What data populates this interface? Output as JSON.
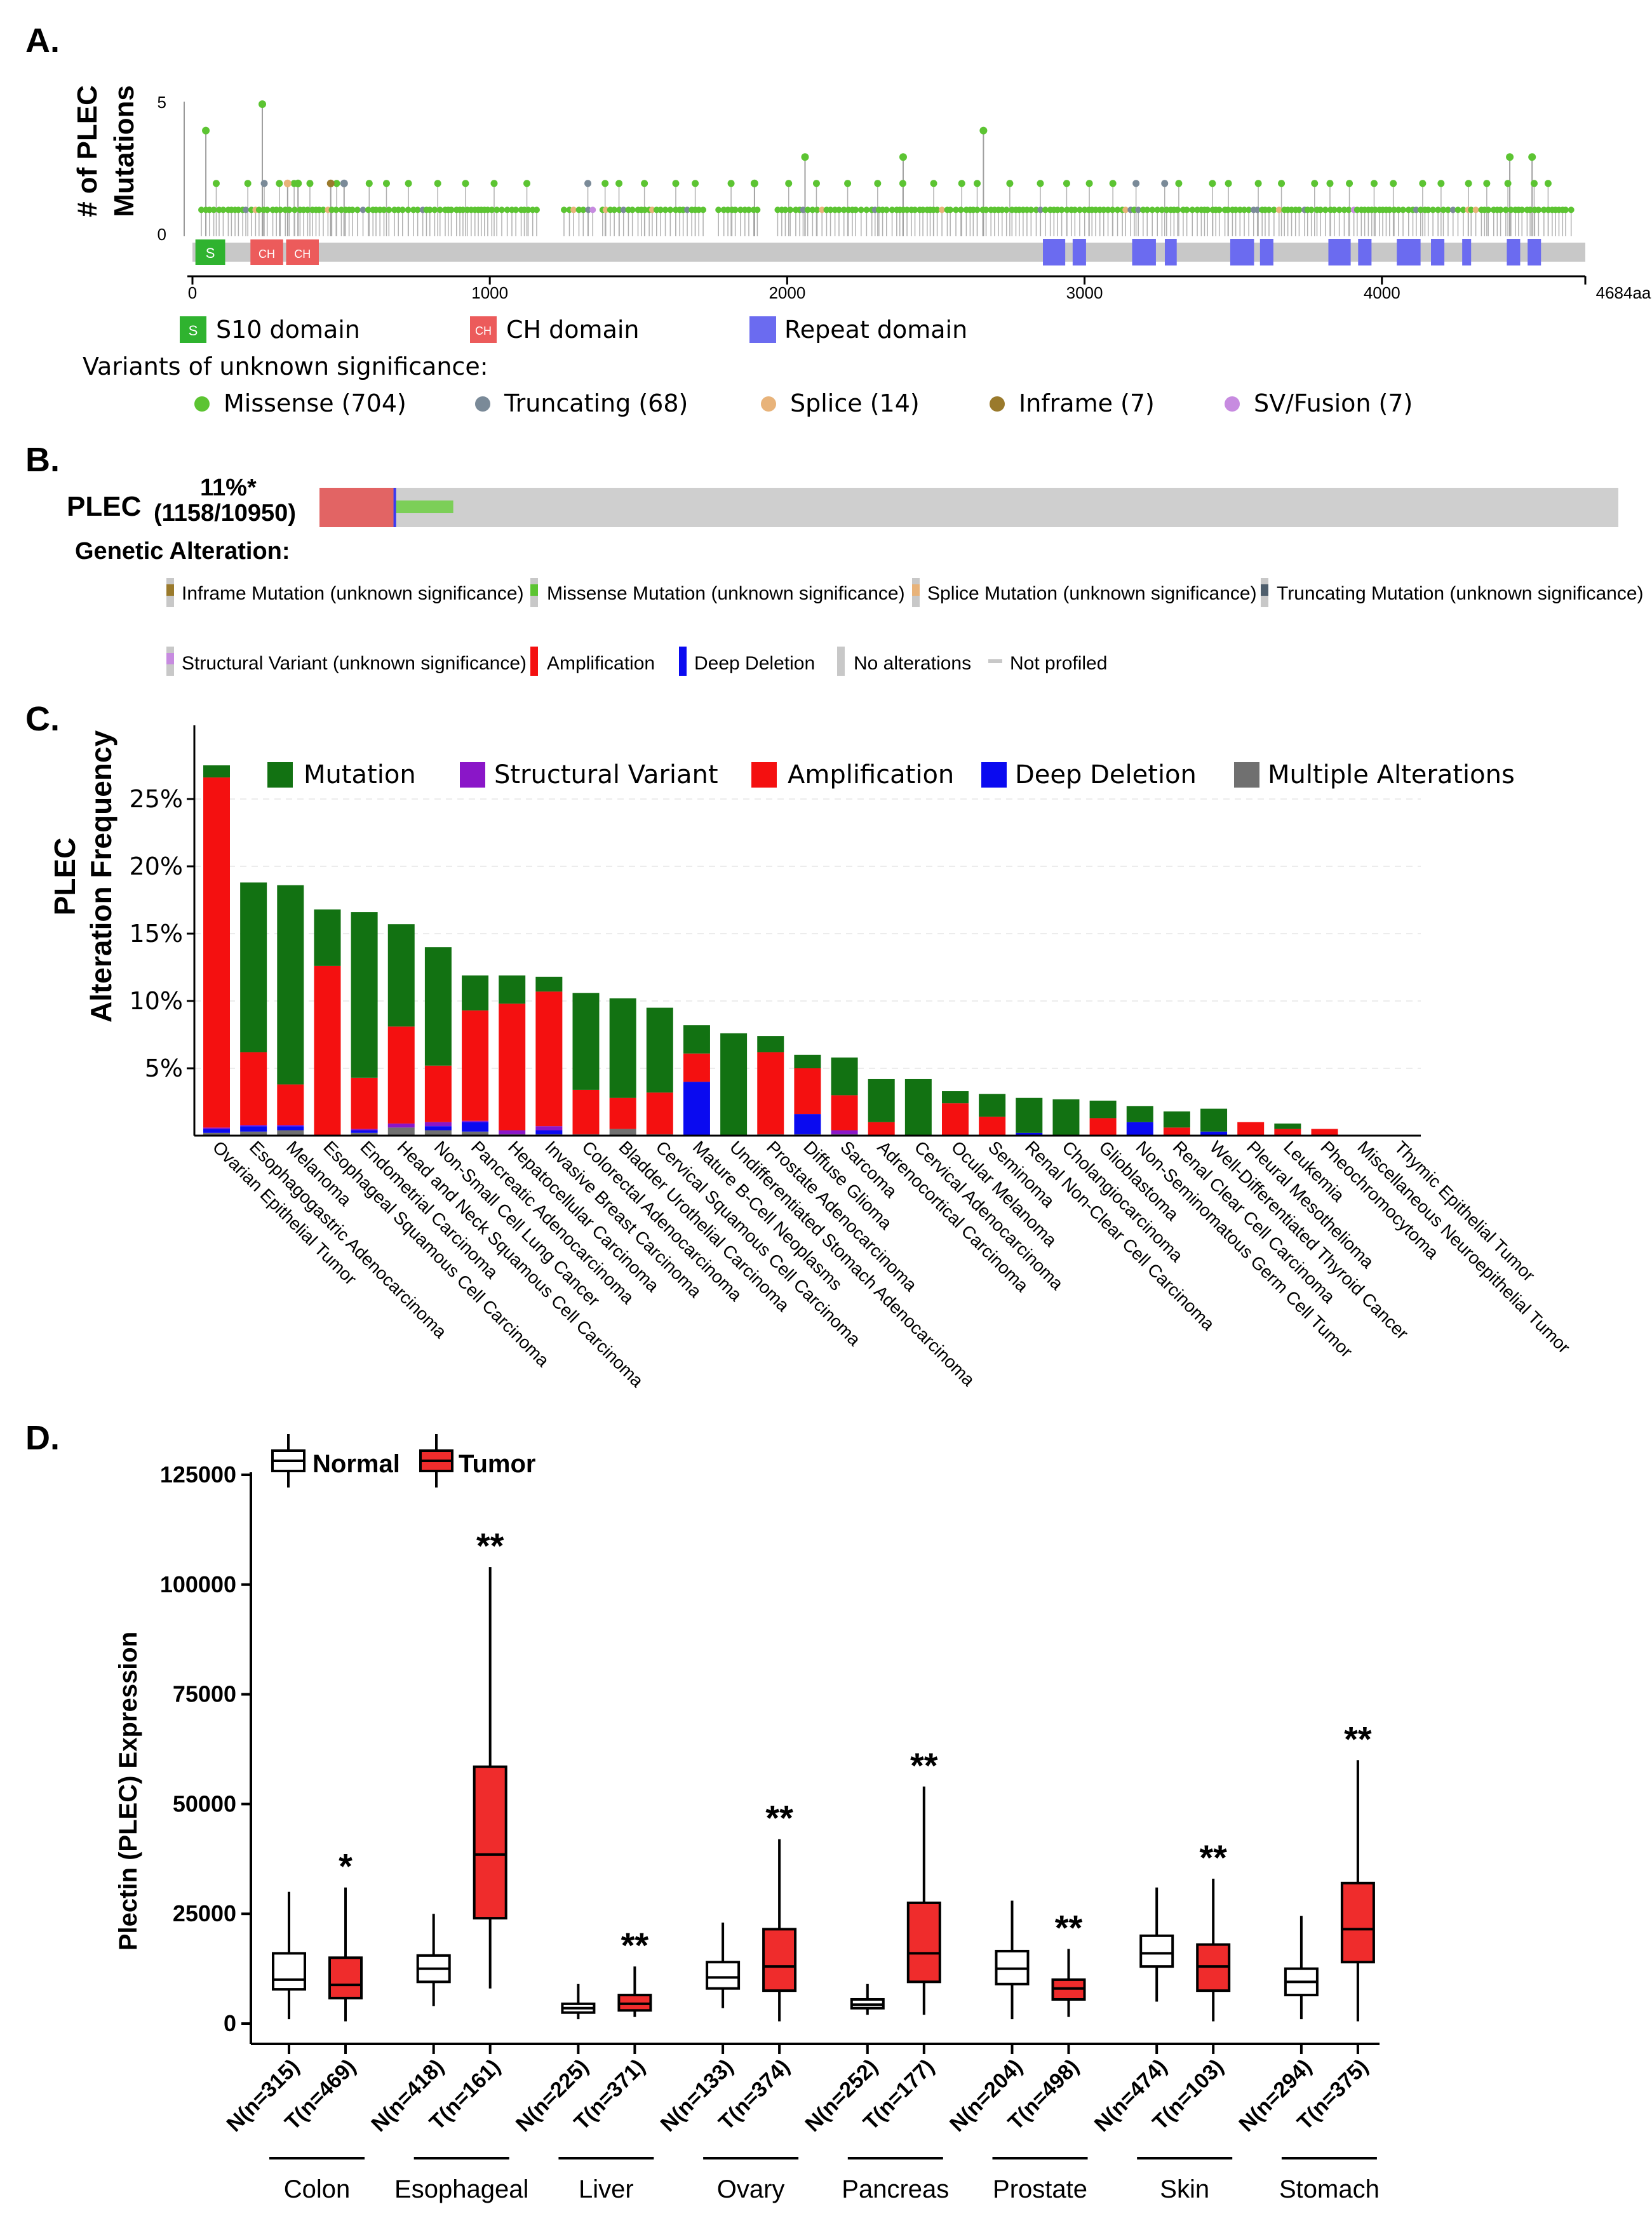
{
  "panels": {
    "a": "A.",
    "b": "B.",
    "c": "C.",
    "d": "D."
  },
  "colors": {
    "missense": "#5cc432",
    "truncating": "#7a8a98",
    "splice": "#e8b37a",
    "inframe": "#9a7a2c",
    "sv": "#c78be0",
    "s10": "#2fb32f",
    "ch": "#ec5b5b",
    "repeat": "#6b6bf0",
    "protein_bar": "#c8c8c8",
    "mutation": "#127212",
    "structural": "#8a16c8",
    "amplification": "#f41010",
    "deep_deletion": "#0a0af0",
    "multiple": "#707070",
    "tumor_box": "#ef2c2c",
    "normal_box": "#ffffff"
  },
  "panel_a": {
    "ylabel_line1": "# of PLEC",
    "ylabel_line2": "Mutations",
    "yticks": [
      "5",
      "0"
    ],
    "xticks": [
      "0",
      "1000",
      "2000",
      "3000",
      "4000",
      "4684aa"
    ],
    "domain_badges": {
      "s10": "S",
      "ch": "CH"
    },
    "domains": [
      {
        "badge": "S",
        "name": "S10 domain",
        "color": "#2fb32f"
      },
      {
        "badge": "CH",
        "name": "CH domain",
        "color": "#ec5b5b"
      },
      {
        "badge": "",
        "name": "Repeat domain",
        "color": "#6b6bf0"
      }
    ],
    "vus_title": "Variants of unknown significance:",
    "variants": [
      {
        "label": "Missense (704)",
        "color": "#5cc432"
      },
      {
        "label": "Truncating (68)",
        "color": "#7a8a98"
      },
      {
        "label": "Splice (14)",
        "color": "#e8b37a"
      },
      {
        "label": "Inframe (7)",
        "color": "#9a7a2c"
      },
      {
        "label": "SV/Fusion (7)",
        "color": "#c78be0"
      }
    ],
    "protein_length": 4684,
    "domain_ranges": [
      {
        "type": "S10",
        "start": 10,
        "end": 110
      },
      {
        "type": "CH",
        "start": 195,
        "end": 305
      },
      {
        "type": "CH",
        "start": 315,
        "end": 425
      },
      {
        "type": "Repeat",
        "start": 2860,
        "end": 2935
      },
      {
        "type": "Repeat",
        "start": 2960,
        "end": 3005
      },
      {
        "type": "Repeat",
        "start": 3160,
        "end": 3240
      },
      {
        "type": "Repeat",
        "start": 3270,
        "end": 3310
      },
      {
        "type": "Repeat",
        "start": 3490,
        "end": 3570
      },
      {
        "type": "Repeat",
        "start": 3590,
        "end": 3635
      },
      {
        "type": "Repeat",
        "start": 3820,
        "end": 3895
      },
      {
        "type": "Repeat",
        "start": 3920,
        "end": 3965
      },
      {
        "type": "Repeat",
        "start": 4050,
        "end": 4130
      },
      {
        "type": "Repeat",
        "start": 4165,
        "end": 4210
      },
      {
        "type": "Repeat",
        "start": 4270,
        "end": 4300
      },
      {
        "type": "Repeat",
        "start": 4420,
        "end": 4465
      },
      {
        "type": "Repeat",
        "start": 4490,
        "end": 4535
      }
    ],
    "featured_mutations": [
      {
        "pos": 45,
        "count": 4,
        "type": "Missense"
      },
      {
        "pos": 235,
        "count": 5,
        "type": "Missense"
      },
      {
        "pos": 320,
        "count": 2,
        "type": "Splice"
      },
      {
        "pos": 355,
        "count": 2,
        "type": "Missense"
      },
      {
        "pos": 465,
        "count": 2,
        "type": "Inframe"
      },
      {
        "pos": 510,
        "count": 2,
        "type": "Truncating"
      },
      {
        "pos": 1890,
        "count": 2,
        "type": "Missense"
      },
      {
        "pos": 2060,
        "count": 3,
        "type": "Missense"
      },
      {
        "pos": 2390,
        "count": 3,
        "type": "Missense"
      },
      {
        "pos": 2660,
        "count": 4,
        "type": "Missense"
      },
      {
        "pos": 4430,
        "count": 3,
        "type": "Missense"
      },
      {
        "pos": 4505,
        "count": 3,
        "type": "Missense"
      }
    ]
  },
  "panel_b": {
    "gene": "PLEC",
    "percent": "11%*",
    "counts": "(1158/10950)",
    "genetic_alteration_title": "Genetic Alteration:",
    "oncoprint_fractions": {
      "amplification": 0.057,
      "deep_deletion": 0.002,
      "mutation": 0.044
    },
    "legend": [
      {
        "label": "Inframe Mutation (unknown significance)",
        "color": "#9a7a2c"
      },
      {
        "label": "Missense Mutation (unknown significance)",
        "color": "#5cc432"
      },
      {
        "label": "Splice Mutation (unknown significance)",
        "color": "#e8b37a"
      },
      {
        "label": "Truncating Mutation (unknown significance)",
        "color": "#4e5e6c"
      },
      {
        "label": "Structural Variant (unknown significance)",
        "color": "#c78be0"
      },
      {
        "label": "Amplification",
        "color": "#f41010"
      },
      {
        "label": "Deep Deletion",
        "color": "#0a0af0"
      },
      {
        "label": "No alterations",
        "color": "#c8c8c8"
      },
      {
        "label": "Not profiled",
        "color": "#c8c8c8"
      }
    ]
  },
  "chart_data": [
    {
      "type": "bar",
      "stacked": true,
      "ylabel_line1": "PLEC",
      "ylabel_line2": "Alteration Frequency",
      "ylim": [
        0,
        27.5
      ],
      "yticks": [
        "5%",
        "10%",
        "15%",
        "20%",
        "25%"
      ],
      "grid": true,
      "legend_position": "top",
      "categories": [
        "Ovarian Epithelial Tumor",
        "Esophagogastric Adenocarcinoma",
        "Melanoma",
        "Esophageal Squamous Cell Carcinoma",
        "Endometrial Carcinoma",
        "Head and Neck Squamous Cell Carcinoma",
        "Non-Small Cell Lung Cancer",
        "Pancreatic Adenocarcinoma",
        "Hepatocellular Carcinoma",
        "Invasive Breast Carcinoma",
        "Colorectal Adenocarcinoma",
        "Bladder Urothelial Carcinoma",
        "Cervical Squamous Cell Carcinoma",
        "Mature B-Cell Neoplasms",
        "Undifferentiated Stomach Adenocarcinoma",
        "Prostate Adenocarcinoma",
        "Diffuse Glioma",
        "Sarcoma",
        "Adrenocortical Carcinoma",
        "Cervical Adenocarcinoma",
        "Ocular Melanoma",
        "Seminoma",
        "Renal Non-Clear Cell Carcinoma",
        "Cholangiocarcinoma",
        "Glioblastoma",
        "Non-Seminomatous Germ Cell Tumor",
        "Renal Clear Cell Carcinoma",
        "Well-Differentiated Thyroid Cancer",
        "Pleural Mesothelioma",
        "Leukemia",
        "Pheochromocytoma",
        "Miscellaneous Neuroepithelial Tumor",
        "Thymic Epithelial Tumor"
      ],
      "series": [
        {
          "name": "Mutation",
          "color": "#127212",
          "values": [
            0.9,
            12.6,
            14.8,
            4.2,
            12.3,
            7.6,
            8.8,
            2.6,
            2.1,
            1.1,
            7.2,
            7.4,
            6.3,
            2.1,
            7.6,
            1.2,
            1.0,
            2.8,
            3.2,
            4.2,
            0.9,
            1.7,
            2.6,
            2.7,
            1.3,
            1.2,
            1.2,
            1.7,
            0.0,
            0.4,
            0.0,
            0.0,
            0.0
          ]
        },
        {
          "name": "Structural Variant",
          "color": "#8a16c8",
          "values": [
            0.1,
            0.1,
            0.1,
            0.0,
            0.1,
            0.3,
            0.3,
            0.1,
            0.3,
            0.3,
            0.0,
            0.0,
            0.0,
            0.0,
            0.0,
            0.0,
            0.0,
            0.3,
            0.0,
            0.0,
            0.0,
            0.0,
            0.0,
            0.0,
            0.0,
            0.0,
            0.0,
            0.0,
            0.0,
            0.0,
            0.0,
            0.0,
            0.0
          ]
        },
        {
          "name": "Amplification",
          "color": "#f41010",
          "values": [
            26.0,
            5.4,
            3.0,
            12.6,
            3.8,
            7.2,
            4.2,
            8.2,
            9.4,
            10.0,
            3.3,
            2.3,
            3.1,
            2.1,
            0.0,
            6.1,
            3.4,
            2.6,
            1.0,
            0.0,
            2.4,
            1.4,
            0.0,
            0.0,
            1.3,
            0.0,
            0.6,
            0.0,
            1.0,
            0.5,
            0.5,
            0.0,
            0.0
          ]
        },
        {
          "name": "Deep Deletion",
          "color": "#0a0af0",
          "values": [
            0.3,
            0.4,
            0.3,
            0.0,
            0.2,
            0.0,
            0.3,
            0.7,
            0.0,
            0.3,
            0.0,
            0.0,
            0.0,
            4.0,
            0.0,
            0.0,
            1.5,
            0.0,
            0.0,
            0.0,
            0.0,
            0.0,
            0.2,
            0.0,
            0.0,
            1.0,
            0.0,
            0.3,
            0.0,
            0.0,
            0.0,
            0.0,
            0.0
          ]
        },
        {
          "name": "Multiple Alterations",
          "color": "#707070",
          "values": [
            0.2,
            0.3,
            0.4,
            0.0,
            0.2,
            0.6,
            0.4,
            0.3,
            0.1,
            0.1,
            0.1,
            0.5,
            0.1,
            0.0,
            0.0,
            0.1,
            0.1,
            0.1,
            0.0,
            0.0,
            0.0,
            0.0,
            0.0,
            0.0,
            0.0,
            0.0,
            0.0,
            0.0,
            0.0,
            0.0,
            0.0,
            0.0,
            0.0
          ]
        }
      ]
    },
    {
      "type": "box",
      "ylabel": "Plectin (PLEC) Expression",
      "ylim": [
        0,
        125000
      ],
      "yticks": [
        "0",
        "25000",
        "50000",
        "75000",
        "100000",
        "125000"
      ],
      "legend": [
        {
          "label": "Normal",
          "color": "#ffffff"
        },
        {
          "label": "Tumor",
          "color": "#ef2c2c"
        }
      ],
      "groups": [
        {
          "tissue": "Colon",
          "normal": {
            "label": "N(n=315)",
            "min": 1000,
            "q1": 7800,
            "median": 10000,
            "q3": 16000,
            "max": 30000
          },
          "tumor": {
            "label": "T(n=469)",
            "min": 500,
            "q1": 5800,
            "median": 8800,
            "q3": 15000,
            "max": 31000
          },
          "sig": "*"
        },
        {
          "tissue": "Esophageal",
          "normal": {
            "label": "N(n=418)",
            "min": 4000,
            "q1": 9500,
            "median": 12500,
            "q3": 15500,
            "max": 25000
          },
          "tumor": {
            "label": "T(n=161)",
            "min": 8000,
            "q1": 24000,
            "median": 38500,
            "q3": 58500,
            "max": 104000
          },
          "sig": "**"
        },
        {
          "tissue": "Liver",
          "normal": {
            "label": "N(n=225)",
            "min": 1000,
            "q1": 2500,
            "median": 3500,
            "q3": 4500,
            "max": 9000
          },
          "tumor": {
            "label": "T(n=371)",
            "min": 1500,
            "q1": 3000,
            "median": 4500,
            "q3": 6500,
            "max": 13000
          },
          "sig": "**"
        },
        {
          "tissue": "Ovary",
          "normal": {
            "label": "N(n=133)",
            "min": 3500,
            "q1": 8000,
            "median": 10500,
            "q3": 14000,
            "max": 23000
          },
          "tumor": {
            "label": "T(n=374)",
            "min": 500,
            "q1": 7500,
            "median": 13000,
            "q3": 21500,
            "max": 42000
          },
          "sig": "**"
        },
        {
          "tissue": "Pancreas",
          "normal": {
            "label": "N(n=252)",
            "min": 2000,
            "q1": 3500,
            "median": 4300,
            "q3": 5500,
            "max": 9000
          },
          "tumor": {
            "label": "T(n=177)",
            "min": 2000,
            "q1": 9500,
            "median": 16000,
            "q3": 27500,
            "max": 54000
          },
          "sig": "**"
        },
        {
          "tissue": "Prostate",
          "normal": {
            "label": "N(n=204)",
            "min": 1000,
            "q1": 9000,
            "median": 12500,
            "q3": 16500,
            "max": 28000
          },
          "tumor": {
            "label": "T(n=498)",
            "min": 1500,
            "q1": 5500,
            "median": 8000,
            "q3": 10000,
            "max": 17000
          },
          "sig": "**"
        },
        {
          "tissue": "Skin",
          "normal": {
            "label": "N(n=474)",
            "min": 5000,
            "q1": 13000,
            "median": 16000,
            "q3": 20000,
            "max": 31000
          },
          "tumor": {
            "label": "T(n=103)",
            "min": 500,
            "q1": 7500,
            "median": 13000,
            "q3": 18000,
            "max": 33000
          },
          "sig": "**"
        },
        {
          "tissue": "Stomach",
          "normal": {
            "label": "N(n=294)",
            "min": 1000,
            "q1": 6500,
            "median": 9500,
            "q3": 12500,
            "max": 24500
          },
          "tumor": {
            "label": "T(n=375)",
            "min": 500,
            "q1": 14000,
            "median": 21500,
            "q3": 32000,
            "max": 60000
          },
          "sig": "**"
        }
      ]
    }
  ]
}
